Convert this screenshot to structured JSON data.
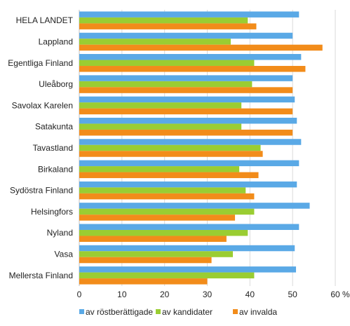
{
  "chart_data": {
    "type": "bar",
    "orientation": "horizontal",
    "categories": [
      "HELA LANDET",
      "Lappland",
      "Egentliga Finland",
      "Uleåborg",
      "Savolax Karelen",
      "Satakunta",
      "Tavastland",
      "Birkaland",
      "Sydöstra Finland",
      "Helsingfors",
      "Nyland",
      "Vasa",
      "Mellersta Finland"
    ],
    "series": [
      {
        "name": "av röstberättigade",
        "color": "#5aa9e6",
        "values": [
          51.5,
          50.0,
          52.0,
          50.0,
          50.5,
          51.0,
          52.0,
          51.5,
          51.0,
          54.0,
          51.5,
          50.5,
          50.8
        ]
      },
      {
        "name": "av kandidater",
        "color": "#9acd32",
        "values": [
          39.5,
          35.5,
          41.0,
          40.5,
          38.0,
          38.0,
          42.5,
          37.5,
          39.0,
          41.0,
          39.5,
          36.0,
          41.0
        ]
      },
      {
        "name": "av invalda",
        "color": "#f28c1a",
        "values": [
          41.5,
          57.0,
          53.0,
          50.0,
          50.0,
          50.0,
          43.0,
          42.0,
          41.0,
          36.5,
          34.5,
          31.0,
          30.0
        ]
      }
    ],
    "xlim": [
      0,
      60
    ],
    "xticks": [
      "0",
      "10",
      "20",
      "30",
      "40",
      "50",
      "60"
    ],
    "unit": "%",
    "grid": true,
    "legend_position": "bottom"
  }
}
